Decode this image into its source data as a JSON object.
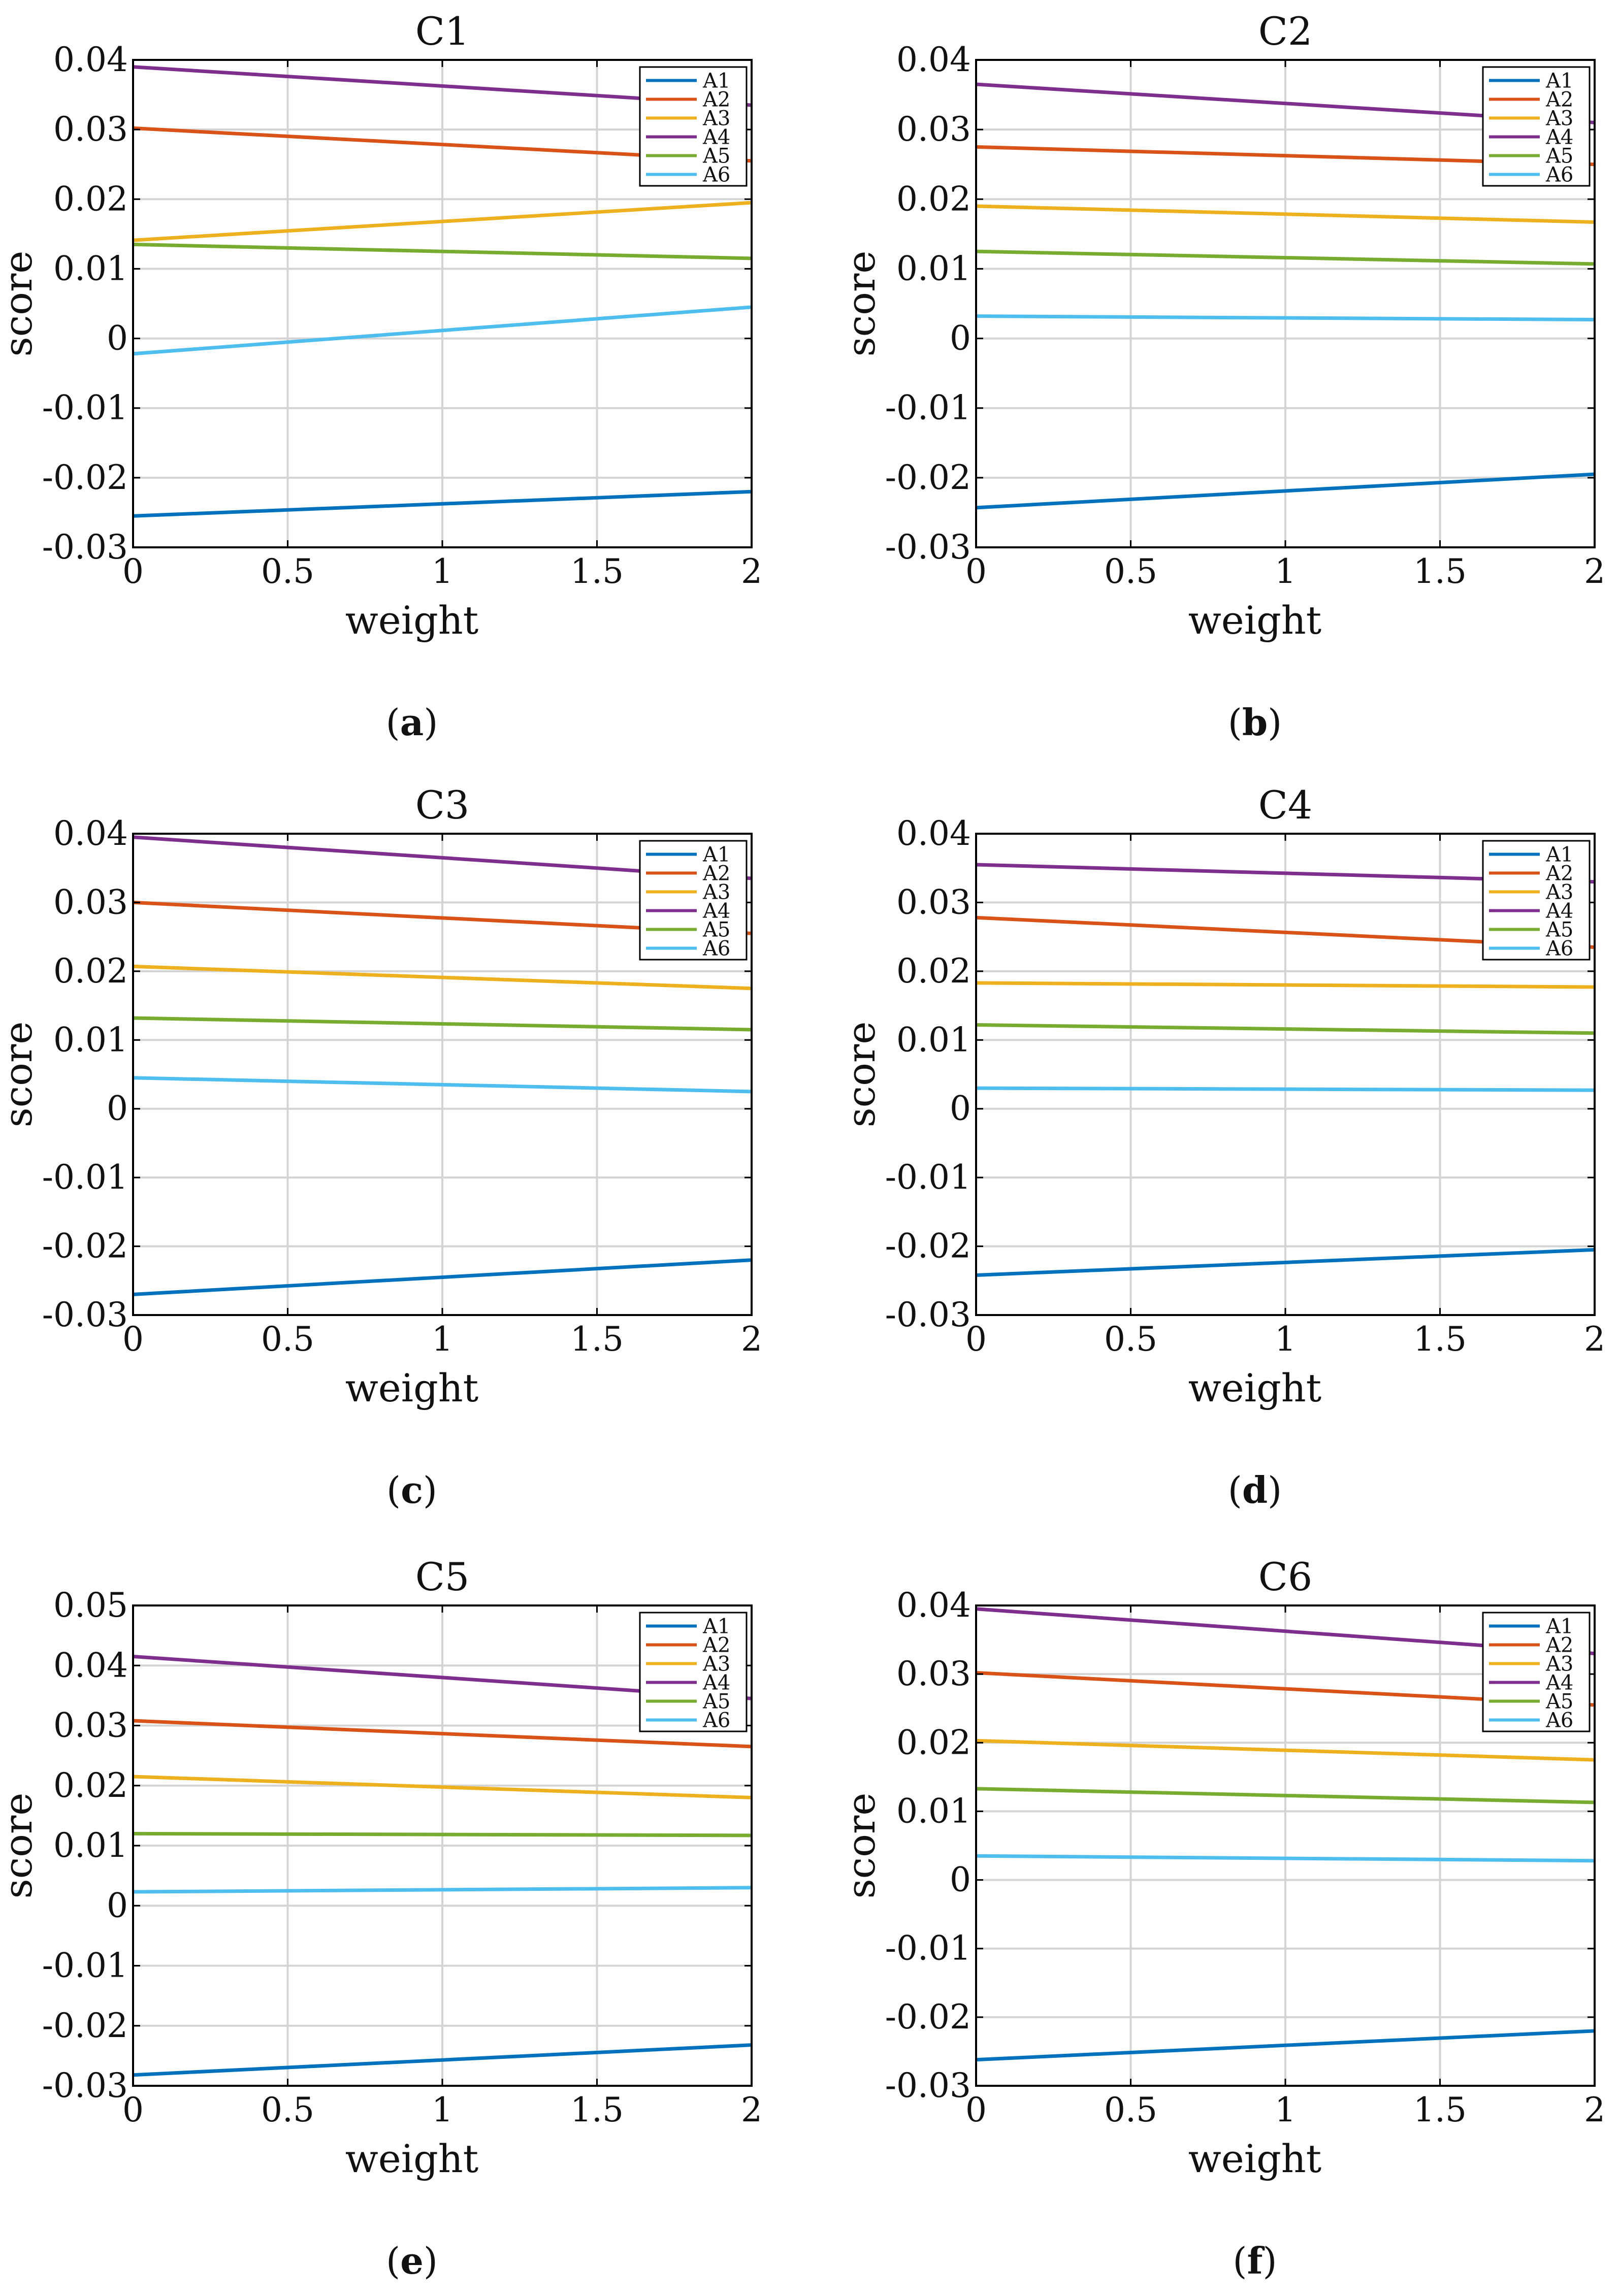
{
  "figure": {
    "series_colors": {
      "A1": "#0072BD",
      "A2": "#D95319",
      "A3": "#EDB120",
      "A4": "#7E2F8E",
      "A5": "#77AC30",
      "A6": "#4DBEEE"
    }
  },
  "chart_data": [
    {
      "type": "line",
      "title": "C1",
      "caption_letter": "a",
      "xlabel": "weight",
      "ylabel": "score",
      "xlim": [
        0,
        2
      ],
      "ylim": [
        -0.03,
        0.04
      ],
      "xticks": [
        0,
        0.5,
        1,
        1.5,
        2
      ],
      "xtick_labels": [
        "0",
        "0.5",
        "1",
        "1.5",
        "2"
      ],
      "yticks": [
        -0.03,
        -0.02,
        -0.01,
        0,
        0.01,
        0.02,
        0.03,
        0.04
      ],
      "ytick_labels": [
        "-0.03",
        "-0.02",
        "-0.01",
        "0",
        "0.01",
        "0.02",
        "0.03",
        "0.04"
      ],
      "grid": true,
      "legend": "top-right",
      "x": [
        0,
        2
      ],
      "series": [
        {
          "name": "A1",
          "values": [
            -0.0255,
            -0.022
          ]
        },
        {
          "name": "A2",
          "values": [
            0.0302,
            0.0255
          ]
        },
        {
          "name": "A3",
          "values": [
            0.0141,
            0.0195
          ]
        },
        {
          "name": "A4",
          "values": [
            0.039,
            0.0335
          ]
        },
        {
          "name": "A5",
          "values": [
            0.0135,
            0.0115
          ]
        },
        {
          "name": "A6",
          "values": [
            -0.0022,
            0.0045
          ]
        }
      ]
    },
    {
      "type": "line",
      "title": "C2",
      "caption_letter": "b",
      "xlabel": "weight",
      "ylabel": "score",
      "xlim": [
        0,
        2
      ],
      "ylim": [
        -0.03,
        0.04
      ],
      "xticks": [
        0,
        0.5,
        1,
        1.5,
        2
      ],
      "xtick_labels": [
        "0",
        "0.5",
        "1",
        "1.5",
        "2"
      ],
      "yticks": [
        -0.03,
        -0.02,
        -0.01,
        0,
        0.01,
        0.02,
        0.03,
        0.04
      ],
      "ytick_labels": [
        "-0.03",
        "-0.02",
        "-0.01",
        "0",
        "0.01",
        "0.02",
        "0.03",
        "0.04"
      ],
      "grid": true,
      "legend": "top-right",
      "x": [
        0,
        2
      ],
      "series": [
        {
          "name": "A1",
          "values": [
            -0.0243,
            -0.0195
          ]
        },
        {
          "name": "A2",
          "values": [
            0.0275,
            0.025
          ]
        },
        {
          "name": "A3",
          "values": [
            0.019,
            0.0167
          ]
        },
        {
          "name": "A4",
          "values": [
            0.0365,
            0.031
          ]
        },
        {
          "name": "A5",
          "values": [
            0.0125,
            0.0107
          ]
        },
        {
          "name": "A6",
          "values": [
            0.0032,
            0.0027
          ]
        }
      ]
    },
    {
      "type": "line",
      "title": "C3",
      "caption_letter": "c",
      "xlabel": "weight",
      "ylabel": "score",
      "xlim": [
        0,
        2
      ],
      "ylim": [
        -0.03,
        0.04
      ],
      "xticks": [
        0,
        0.5,
        1,
        1.5,
        2
      ],
      "xtick_labels": [
        "0",
        "0.5",
        "1",
        "1.5",
        "2"
      ],
      "yticks": [
        -0.03,
        -0.02,
        -0.01,
        0,
        0.01,
        0.02,
        0.03,
        0.04
      ],
      "ytick_labels": [
        "-0.03",
        "-0.02",
        "-0.01",
        "0",
        "0.01",
        "0.02",
        "0.03",
        "0.04"
      ],
      "grid": true,
      "legend": "top-right",
      "x": [
        0,
        2
      ],
      "series": [
        {
          "name": "A1",
          "values": [
            -0.027,
            -0.022
          ]
        },
        {
          "name": "A2",
          "values": [
            0.03,
            0.0255
          ]
        },
        {
          "name": "A3",
          "values": [
            0.0207,
            0.0175
          ]
        },
        {
          "name": "A4",
          "values": [
            0.0395,
            0.0335
          ]
        },
        {
          "name": "A5",
          "values": [
            0.0132,
            0.0115
          ]
        },
        {
          "name": "A6",
          "values": [
            0.0045,
            0.0025
          ]
        }
      ]
    },
    {
      "type": "line",
      "title": "C4",
      "caption_letter": "d",
      "xlabel": "weight",
      "ylabel": "score",
      "xlim": [
        0,
        2
      ],
      "ylim": [
        -0.03,
        0.04
      ],
      "xticks": [
        0,
        0.5,
        1,
        1.5,
        2
      ],
      "xtick_labels": [
        "0",
        "0.5",
        "1",
        "1.5",
        "2"
      ],
      "yticks": [
        -0.03,
        -0.02,
        -0.01,
        0,
        0.01,
        0.02,
        0.03,
        0.04
      ],
      "ytick_labels": [
        "-0.03",
        "-0.02",
        "-0.01",
        "0",
        "0.01",
        "0.02",
        "0.03",
        "0.04"
      ],
      "grid": true,
      "legend": "top-right",
      "x": [
        0,
        2
      ],
      "series": [
        {
          "name": "A1",
          "values": [
            -0.0242,
            -0.0205
          ]
        },
        {
          "name": "A2",
          "values": [
            0.0278,
            0.0235
          ]
        },
        {
          "name": "A3",
          "values": [
            0.0183,
            0.0177
          ]
        },
        {
          "name": "A4",
          "values": [
            0.0355,
            0.033
          ]
        },
        {
          "name": "A5",
          "values": [
            0.0122,
            0.011
          ]
        },
        {
          "name": "A6",
          "values": [
            0.003,
            0.0027
          ]
        }
      ]
    },
    {
      "type": "line",
      "title": "C5",
      "caption_letter": "e",
      "xlabel": "weight",
      "ylabel": "score",
      "xlim": [
        0,
        2
      ],
      "ylim": [
        -0.03,
        0.05
      ],
      "xticks": [
        0,
        0.5,
        1,
        1.5,
        2
      ],
      "xtick_labels": [
        "0",
        "0.5",
        "1",
        "1.5",
        "2"
      ],
      "yticks": [
        -0.03,
        -0.02,
        -0.01,
        0,
        0.01,
        0.02,
        0.03,
        0.04,
        0.05
      ],
      "ytick_labels": [
        "-0.03",
        "-0.02",
        "-0.01",
        "0",
        "0.01",
        "0.02",
        "0.03",
        "0.04",
        "0.05"
      ],
      "grid": true,
      "legend": "top-right",
      "x": [
        0,
        2
      ],
      "series": [
        {
          "name": "A1",
          "values": [
            -0.0282,
            -0.0232
          ]
        },
        {
          "name": "A2",
          "values": [
            0.0308,
            0.0265
          ]
        },
        {
          "name": "A3",
          "values": [
            0.0215,
            0.018
          ]
        },
        {
          "name": "A4",
          "values": [
            0.0415,
            0.0345
          ]
        },
        {
          "name": "A5",
          "values": [
            0.012,
            0.0117
          ]
        },
        {
          "name": "A6",
          "values": [
            0.0023,
            0.003
          ]
        }
      ]
    },
    {
      "type": "line",
      "title": "C6",
      "caption_letter": "f",
      "xlabel": "weight",
      "ylabel": "score",
      "xlim": [
        0,
        2
      ],
      "ylim": [
        -0.03,
        0.04
      ],
      "xticks": [
        0,
        0.5,
        1,
        1.5,
        2
      ],
      "xtick_labels": [
        "0",
        "0.5",
        "1",
        "1.5",
        "2"
      ],
      "yticks": [
        -0.03,
        -0.02,
        -0.01,
        0,
        0.01,
        0.02,
        0.03,
        0.04
      ],
      "ytick_labels": [
        "-0.03",
        "-0.02",
        "-0.01",
        "0",
        "0.01",
        "0.02",
        "0.03",
        "0.04"
      ],
      "grid": true,
      "legend": "top-right",
      "x": [
        0,
        2
      ],
      "series": [
        {
          "name": "A1",
          "values": [
            -0.0262,
            -0.022
          ]
        },
        {
          "name": "A2",
          "values": [
            0.0302,
            0.0255
          ]
        },
        {
          "name": "A3",
          "values": [
            0.0203,
            0.0175
          ]
        },
        {
          "name": "A4",
          "values": [
            0.0395,
            0.033
          ]
        },
        {
          "name": "A5",
          "values": [
            0.0133,
            0.0113
          ]
        },
        {
          "name": "A6",
          "values": [
            0.0035,
            0.0028
          ]
        }
      ]
    }
  ]
}
